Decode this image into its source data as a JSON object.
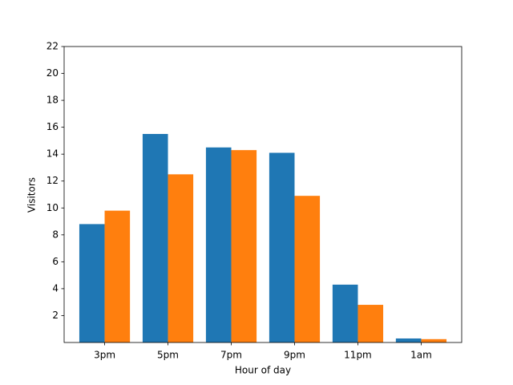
{
  "chart_data": {
    "type": "bar",
    "x_label": "Hour of day",
    "y_label": "Visitors",
    "categories": [
      "3pm",
      "5pm",
      "7pm",
      "9pm",
      "11pm",
      "1am"
    ],
    "series": [
      {
        "color": "#1f77b4",
        "values": [
          8.8,
          15.5,
          14.5,
          14.1,
          4.3,
          0.3
        ]
      },
      {
        "color": "#ff7f0e",
        "values": [
          9.8,
          12.5,
          14.3,
          10.9,
          2.8,
          0.25
        ]
      }
    ],
    "ylim": [
      0,
      22
    ],
    "yticks": [
      2,
      4,
      6,
      8,
      10,
      12,
      14,
      16,
      18,
      20,
      22
    ]
  }
}
